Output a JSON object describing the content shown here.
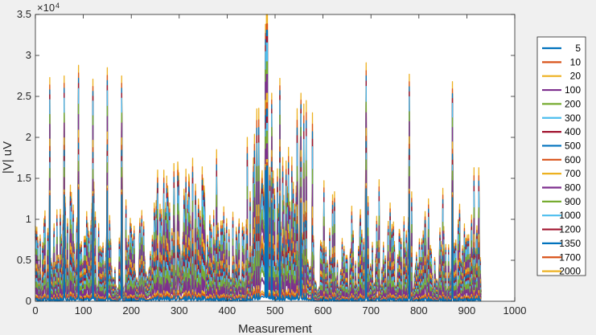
{
  "chart_data": {
    "type": "line",
    "xlabel": "Measurement",
    "ylabel": "|V| uV",
    "y_multiplier_label": "×10",
    "y_multiplier_exp": "4",
    "xlim": [
      0,
      1000
    ],
    "ylim": [
      0,
      35000
    ],
    "x_ticks": [
      0,
      100,
      200,
      300,
      400,
      500,
      600,
      700,
      800,
      900,
      1000
    ],
    "y_ticks": [
      0,
      5000,
      10000,
      15000,
      20000,
      25000,
      30000,
      35000
    ],
    "y_tick_labels": [
      "0",
      "0.5",
      "1",
      "1.5",
      "2",
      "2.5",
      "3",
      "3.5"
    ],
    "x_tick_labels": [
      "0",
      "100",
      "200",
      "300",
      "400",
      "500",
      "600",
      "700",
      "800",
      "900",
      "1000"
    ],
    "grid": false,
    "legend_position": "right",
    "n_points": 930,
    "series": [
      {
        "name": "5",
        "color": "#0072BD",
        "relative_level": 0.04
      },
      {
        "name": "10",
        "color": "#D95319",
        "relative_level": 0.06
      },
      {
        "name": "20",
        "color": "#EDB120",
        "relative_level": 0.08
      },
      {
        "name": "100",
        "color": "#7E2F8E",
        "relative_level": 0.18
      },
      {
        "name": "200",
        "color": "#77AC30",
        "relative_level": 0.26
      },
      {
        "name": "300",
        "color": "#4DBEEE",
        "relative_level": 0.31
      },
      {
        "name": "400",
        "color": "#A2142F",
        "relative_level": 0.35
      },
      {
        "name": "500",
        "color": "#0072BD",
        "relative_level": 0.4
      },
      {
        "name": "600",
        "color": "#D95319",
        "relative_level": 0.44
      },
      {
        "name": "700",
        "color": "#EDB120",
        "relative_level": 0.5
      },
      {
        "name": "800",
        "color": "#7E2F8E",
        "relative_level": 0.62
      },
      {
        "name": "900",
        "color": "#77AC30",
        "relative_level": 0.7
      },
      {
        "name": "1000",
        "color": "#4DBEEE",
        "relative_level": 0.82
      },
      {
        "name": "1200",
        "color": "#A2142F",
        "relative_level": 0.86
      },
      {
        "name": "1350",
        "color": "#0072BD",
        "relative_level": 0.9
      },
      {
        "name": "1700",
        "color": "#D95319",
        "relative_level": 0.94
      },
      {
        "name": "2000",
        "color": "#EDB120",
        "relative_level": 1.0
      }
    ],
    "envelope": {
      "baseline": [
        [
          0,
          1000
        ],
        [
          40,
          1200
        ],
        [
          100,
          2500
        ],
        [
          130,
          1300
        ],
        [
          180,
          900
        ],
        [
          250,
          2500
        ],
        [
          300,
          3500
        ],
        [
          380,
          2000
        ],
        [
          440,
          1500
        ],
        [
          460,
          5000
        ],
        [
          480,
          10000
        ],
        [
          500,
          2500
        ],
        [
          560,
          5000
        ],
        [
          580,
          1000
        ],
        [
          620,
          900
        ],
        [
          700,
          1200
        ],
        [
          780,
          900
        ],
        [
          840,
          800
        ],
        [
          900,
          1100
        ],
        [
          930,
          1200
        ]
      ],
      "peaks": [
        [
          30,
          27300
        ],
        [
          60,
          27500
        ],
        [
          90,
          28800
        ],
        [
          120,
          27100
        ],
        [
          150,
          28500
        ],
        [
          180,
          27500
        ],
        [
          248,
          12000
        ],
        [
          268,
          16000
        ],
        [
          320,
          15500
        ],
        [
          350,
          15000
        ],
        [
          378,
          18500
        ],
        [
          442,
          20000
        ],
        [
          455,
          17500
        ],
        [
          480,
          33800
        ],
        [
          510,
          27200
        ],
        [
          546,
          23500
        ],
        [
          565,
          24500
        ],
        [
          578,
          23000
        ],
        [
          620,
          13000
        ],
        [
          690,
          29100
        ],
        [
          740,
          12000
        ],
        [
          780,
          27700
        ],
        [
          820,
          12500
        ],
        [
          870,
          26800
        ],
        [
          915,
          16300
        ],
        [
          925,
          16300
        ]
      ],
      "spikiness": 0.9,
      "high_spike_threshold": 25000
    }
  }
}
